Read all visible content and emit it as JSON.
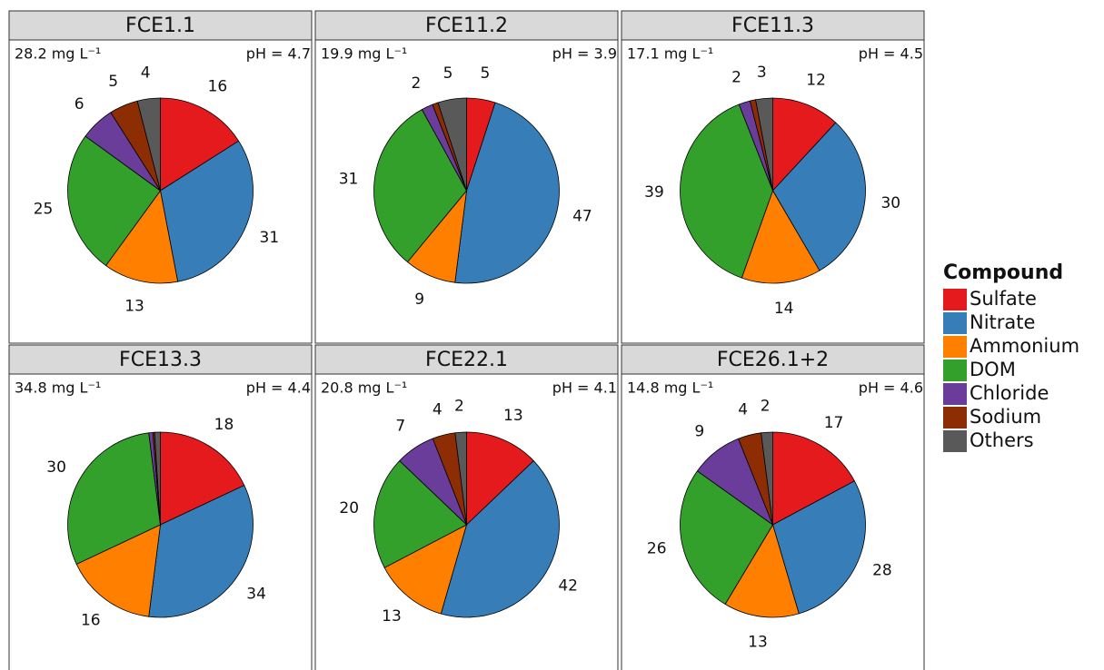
{
  "chart_data": [
    {
      "type": "pie",
      "title": "FCE1.1",
      "concentration": "28.2 mg L⁻¹",
      "ph": "pH = 4.7",
      "values": [
        16,
        31,
        13,
        25,
        6,
        5,
        4
      ]
    },
    {
      "type": "pie",
      "title": "FCE11.2",
      "concentration": "19.9 mg L⁻¹",
      "ph": "pH = 3.9",
      "values": [
        5,
        47,
        9,
        31,
        2,
        1,
        5
      ]
    },
    {
      "type": "pie",
      "title": "FCE11.3",
      "concentration": "17.1 mg L⁻¹",
      "ph": "pH = 4.5",
      "values": [
        12,
        30,
        14,
        39,
        2,
        1,
        3
      ]
    },
    {
      "type": "pie",
      "title": "FCE13.3",
      "concentration": "34.8 mg L⁻¹",
      "ph": "pH = 4.4",
      "values": [
        18,
        34,
        16,
        30,
        0.7,
        0.3,
        1
      ]
    },
    {
      "type": "pie",
      "title": "FCE22.1",
      "concentration": "20.8 mg L⁻¹",
      "ph": "pH = 4.1",
      "values": [
        13,
        42,
        13,
        20,
        7,
        4,
        2
      ]
    },
    {
      "type": "pie",
      "title": "FCE26.1+2",
      "concentration": "14.8 mg L⁻¹",
      "ph": "pH = 4.6",
      "values": [
        17,
        28,
        13,
        26,
        9,
        4,
        2
      ]
    }
  ],
  "legend": {
    "title": "Compound",
    "categories": [
      "Sulfate",
      "Nitrate",
      "Ammonium",
      "DOM",
      "Chloride",
      "Sodium",
      "Others"
    ],
    "colors": [
      "#e41a1c",
      "#377eb8",
      "#ff7f00",
      "#33a02c",
      "#6a3d9a",
      "#8c2d04",
      "#595959"
    ]
  }
}
